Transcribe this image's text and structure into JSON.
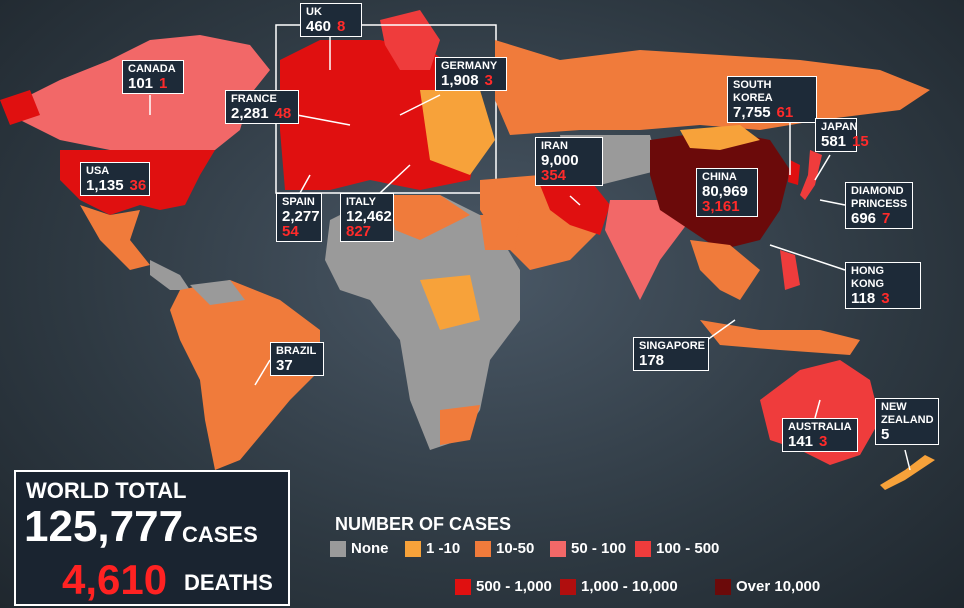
{
  "callouts": [
    {
      "name": "UK",
      "cases": "460",
      "deaths": "8"
    },
    {
      "name": "CANADA",
      "cases": "101",
      "deaths": "1"
    },
    {
      "name": "GERMANY",
      "cases": "1,908",
      "deaths": "3"
    },
    {
      "name": "FRANCE",
      "cases": "2,281",
      "deaths": "48"
    },
    {
      "name": "USA",
      "cases": "1,135",
      "deaths": "36"
    },
    {
      "name": "SPAIN",
      "cases": "2,277",
      "deaths": "54"
    },
    {
      "name": "ITALY",
      "cases": "12,462",
      "deaths": "827"
    },
    {
      "name": "IRAN",
      "cases": "9,000",
      "deaths": "354"
    },
    {
      "name": "CHINA",
      "cases": "80,969",
      "deaths": "3,161"
    },
    {
      "name": "SOUTH KOREA",
      "cases": "7,755",
      "deaths": "61"
    },
    {
      "name": "JAPAN",
      "cases": "581",
      "deaths": "15"
    },
    {
      "name": "DIAMOND PRINCESS",
      "cases": "696",
      "deaths": "7"
    },
    {
      "name": "HONG KONG",
      "cases": "118",
      "deaths": "3"
    },
    {
      "name": "SINGAPORE",
      "cases": "178"
    },
    {
      "name": "BRAZIL",
      "cases": "37"
    },
    {
      "name": "AUSTRALIA",
      "cases": "141",
      "deaths": "3"
    },
    {
      "name": "NEW ZEALAND",
      "cases": "5"
    }
  ],
  "world_total": {
    "title": "WORLD TOTAL",
    "cases": "125,777",
    "cases_label": "CASES",
    "deaths": "4,610",
    "deaths_label": "DEATHS"
  },
  "legend": {
    "title": "NUMBER OF CASES",
    "items": [
      {
        "label": "None",
        "color": "#9a9a9a"
      },
      {
        "label": "1 -10",
        "color": "#f7a23a"
      },
      {
        "label": "10-50",
        "color": "#f07b3b"
      },
      {
        "label": "50 - 100",
        "color": "#f26868"
      },
      {
        "label": "100 - 500",
        "color": "#ef3c3c"
      },
      {
        "label": "500 - 1,000",
        "color": "#e01010"
      },
      {
        "label": "1,000 - 10,000",
        "color": "#b00e0e"
      },
      {
        "label": "Over 10,000",
        "color": "#6b0a0a"
      }
    ]
  }
}
